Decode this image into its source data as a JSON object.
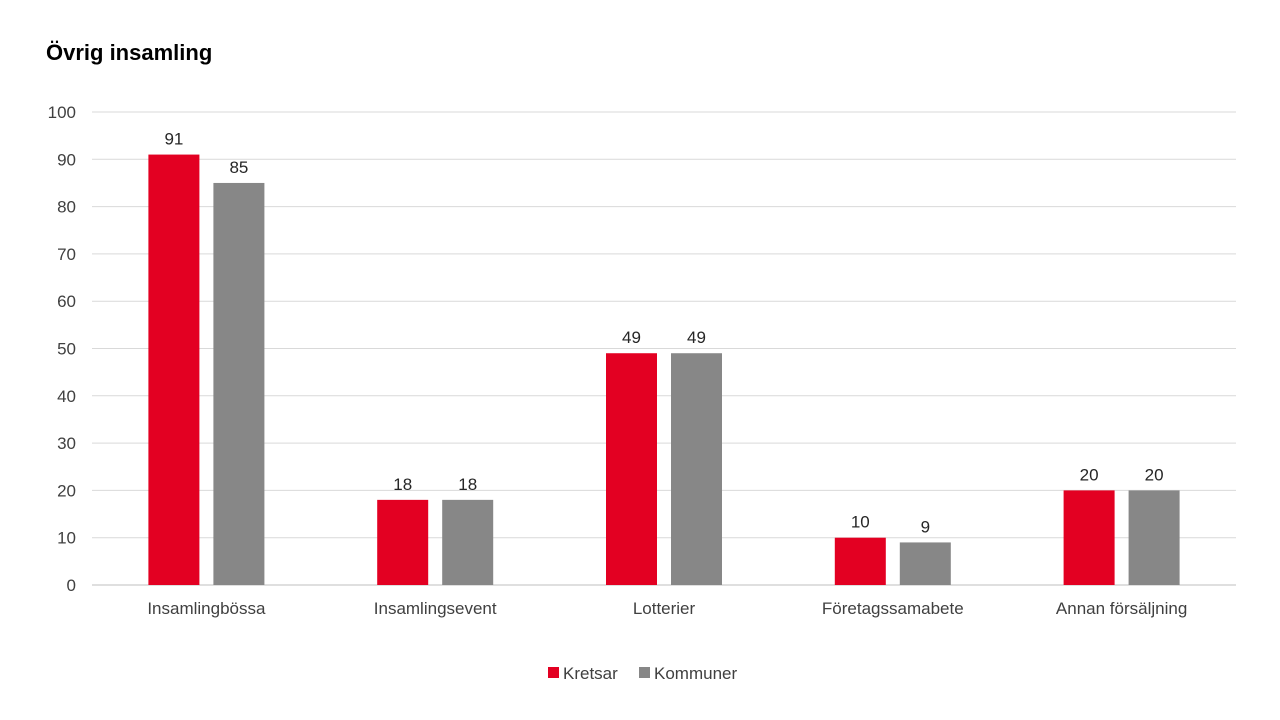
{
  "chart_data": {
    "type": "bar",
    "title": "Övrig insamling",
    "categories": [
      "Insamlingbössa",
      "Insamlingsevent",
      "Lotterier",
      "Företagssamabete",
      "Annan försäljning"
    ],
    "series": [
      {
        "name": "Kretsar",
        "values": [
          91,
          18,
          49,
          10,
          20
        ],
        "color": "#e30022"
      },
      {
        "name": "Kommuner",
        "values": [
          85,
          18,
          49,
          9,
          20
        ],
        "color": "#878787"
      }
    ],
    "ylim": [
      0,
      100
    ],
    "yticks": [
      0,
      10,
      20,
      30,
      40,
      50,
      60,
      70,
      80,
      90,
      100
    ],
    "grid": true,
    "legend_position": "bottom"
  }
}
